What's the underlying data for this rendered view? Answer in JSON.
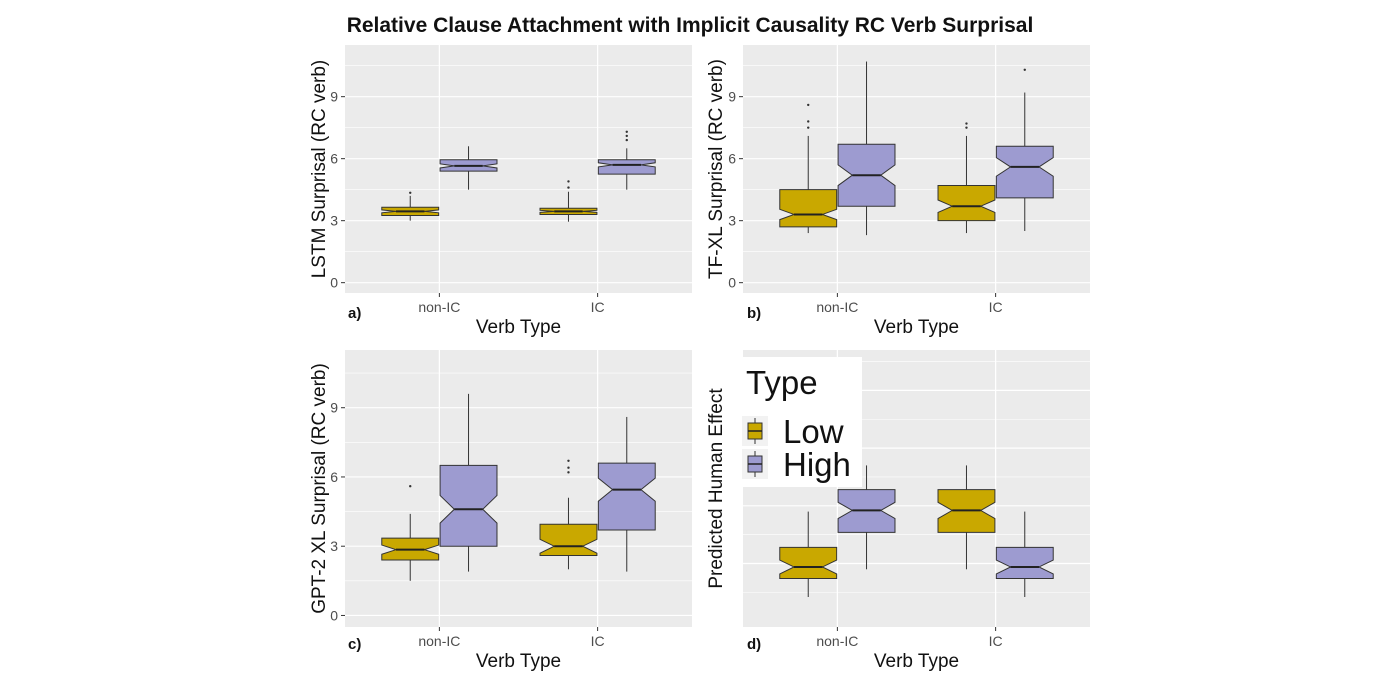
{
  "figure_title": "Relative Clause Attachment with Implicit Causality RC Verb Surprisal",
  "colors": {
    "Low": "#c9a800",
    "High": "#9d9bd0",
    "panel_bg": "#ebebeb",
    "grid": "#ffffff",
    "outline": "#333333"
  },
  "legend": {
    "title": "Type",
    "entries": [
      {
        "label": "Low",
        "color": "#c9a800"
      },
      {
        "label": "High",
        "color": "#9d9bd0"
      }
    ]
  },
  "chart_data": [
    {
      "type": "box",
      "panel_label": "a)",
      "title": "",
      "xlabel": "Verb Type",
      "ylabel": "LSTM Surprisal (RC verb)",
      "categories": [
        "non-IC",
        "IC"
      ],
      "yticks": [
        0,
        3,
        6,
        9
      ],
      "ylim": [
        -0.5,
        11.5
      ],
      "series": [
        {
          "name": "Low",
          "boxes": [
            {
              "whisker_low": 3.0,
              "q1": 3.25,
              "median": 3.45,
              "q3": 3.65,
              "whisker_high": 4.2,
              "notch_low": 3.38,
              "notch_high": 3.52,
              "outliers": [
                4.35
              ]
            },
            {
              "whisker_low": 2.95,
              "q1": 3.3,
              "median": 3.45,
              "q3": 3.6,
              "whisker_high": 4.4,
              "notch_low": 3.4,
              "notch_high": 3.5,
              "outliers": [
                4.6,
                4.9
              ]
            }
          ]
        },
        {
          "name": "High",
          "boxes": [
            {
              "whisker_low": 4.5,
              "q1": 5.4,
              "median": 5.65,
              "q3": 5.95,
              "whisker_high": 6.6,
              "notch_low": 5.55,
              "notch_high": 5.75,
              "outliers": []
            },
            {
              "whisker_low": 4.5,
              "q1": 5.25,
              "median": 5.7,
              "q3": 5.95,
              "whisker_high": 6.5,
              "notch_low": 5.6,
              "notch_high": 5.8,
              "outliers": [
                6.9,
                7.1,
                7.3
              ]
            }
          ]
        }
      ]
    },
    {
      "type": "box",
      "panel_label": "b)",
      "title": "",
      "xlabel": "Verb Type",
      "ylabel": "TF-XL Surprisal (RC verb)",
      "categories": [
        "non-IC",
        "IC"
      ],
      "yticks": [
        0,
        3,
        6,
        9
      ],
      "ylim": [
        -0.5,
        11.5
      ],
      "series": [
        {
          "name": "Low",
          "boxes": [
            {
              "whisker_low": 2.4,
              "q1": 2.7,
              "median": 3.3,
              "q3": 4.5,
              "whisker_high": 7.1,
              "notch_low": 3.05,
              "notch_high": 3.55,
              "outliers": [
                7.5,
                7.8,
                8.6
              ]
            },
            {
              "whisker_low": 2.4,
              "q1": 3.0,
              "median": 3.7,
              "q3": 4.7,
              "whisker_high": 7.1,
              "notch_low": 3.4,
              "notch_high": 4.0,
              "outliers": [
                7.5,
                7.7
              ]
            }
          ]
        },
        {
          "name": "High",
          "boxes": [
            {
              "whisker_low": 2.3,
              "q1": 3.7,
              "median": 5.2,
              "q3": 6.7,
              "whisker_high": 10.7,
              "notch_low": 4.7,
              "notch_high": 5.7,
              "outliers": []
            },
            {
              "whisker_low": 2.5,
              "q1": 4.1,
              "median": 5.6,
              "q3": 6.6,
              "whisker_high": 9.2,
              "notch_low": 5.15,
              "notch_high": 6.05,
              "outliers": [
                10.3
              ]
            }
          ]
        }
      ]
    },
    {
      "type": "box",
      "panel_label": "c)",
      "title": "",
      "xlabel": "Verb Type",
      "ylabel": "GPT-2 XL Surprisal (RC verb)",
      "categories": [
        "non-IC",
        "IC"
      ],
      "yticks": [
        0,
        3,
        6,
        9
      ],
      "ylim": [
        -0.5,
        11.5
      ],
      "series": [
        {
          "name": "Low",
          "boxes": [
            {
              "whisker_low": 1.5,
              "q1": 2.4,
              "median": 2.85,
              "q3": 3.35,
              "whisker_high": 4.4,
              "notch_low": 2.65,
              "notch_high": 3.05,
              "outliers": [
                5.6
              ]
            },
            {
              "whisker_low": 2.0,
              "q1": 2.6,
              "median": 3.0,
              "q3": 3.95,
              "whisker_high": 5.1,
              "notch_low": 2.7,
              "notch_high": 3.3,
              "outliers": [
                6.2,
                6.4,
                6.7
              ]
            }
          ]
        },
        {
          "name": "High",
          "boxes": [
            {
              "whisker_low": 1.9,
              "q1": 3.0,
              "median": 4.6,
              "q3": 6.5,
              "whisker_high": 9.6,
              "notch_low": 4.0,
              "notch_high": 5.2,
              "outliers": []
            },
            {
              "whisker_low": 1.9,
              "q1": 3.7,
              "median": 5.45,
              "q3": 6.6,
              "whisker_high": 8.6,
              "notch_low": 4.95,
              "notch_high": 5.95,
              "outliers": []
            }
          ]
        }
      ]
    },
    {
      "type": "box",
      "panel_label": "d)",
      "title": "",
      "xlabel": "Verb Type",
      "ylabel": "Predicted Human Effect",
      "categories": [
        "non-IC",
        "IC"
      ],
      "yticks": [],
      "ylim": [
        -0.5,
        11.5
      ],
      "series": [
        {
          "name": "Low",
          "boxes": [
            {
              "whisker_low": 0.8,
              "q1": 1.6,
              "median": 2.1,
              "q3": 2.95,
              "whisker_high": 4.5,
              "notch_low": 1.8,
              "notch_high": 2.4,
              "outliers": []
            },
            {
              "whisker_low": 2.0,
              "q1": 3.6,
              "median": 4.55,
              "q3": 5.45,
              "whisker_high": 6.5,
              "notch_low": 4.2,
              "notch_high": 4.9,
              "outliers": []
            }
          ]
        },
        {
          "name": "High",
          "boxes": [
            {
              "whisker_low": 2.0,
              "q1": 3.6,
              "median": 4.55,
              "q3": 5.45,
              "whisker_high": 6.5,
              "notch_low": 4.2,
              "notch_high": 4.9,
              "outliers": []
            },
            {
              "whisker_low": 0.8,
              "q1": 1.6,
              "median": 2.1,
              "q3": 2.95,
              "whisker_high": 4.5,
              "notch_low": 1.8,
              "notch_high": 2.4,
              "outliers": []
            }
          ]
        }
      ]
    }
  ]
}
